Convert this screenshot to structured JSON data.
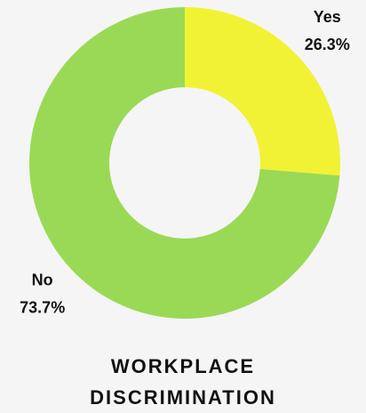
{
  "chart_data": {
    "type": "donut",
    "title": "WORKPLACE DISCRIMINATION",
    "categories": [
      "Yes",
      "No"
    ],
    "values": [
      26.3,
      73.7
    ],
    "value_labels": [
      "26.3%",
      "73.7%"
    ],
    "colors": [
      "#f2f235",
      "#9ad955"
    ]
  }
}
